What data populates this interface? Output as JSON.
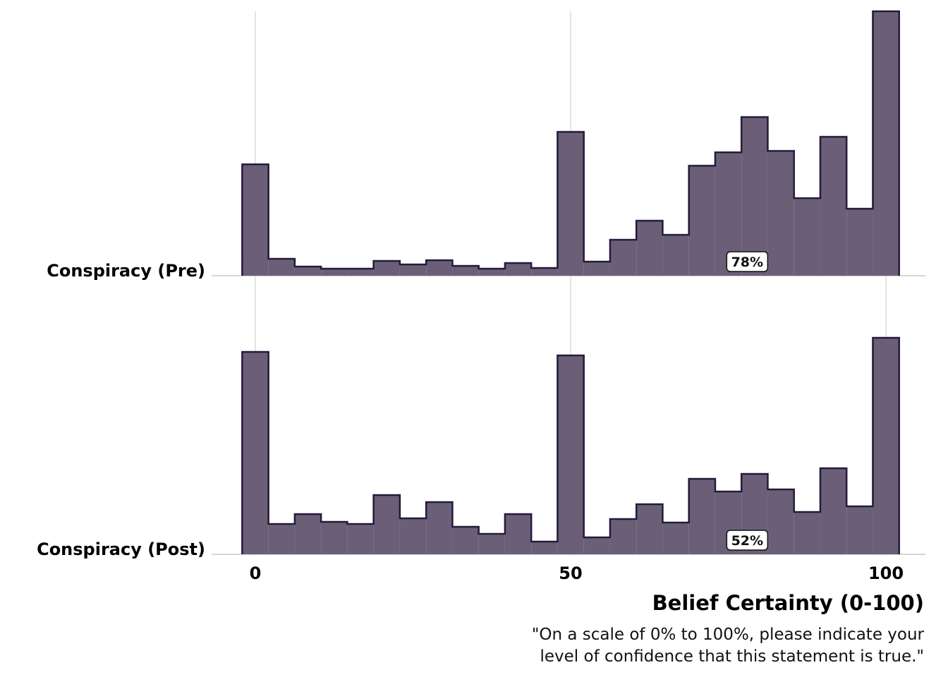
{
  "chart_data": {
    "type": "histogram",
    "xlabel": "Belief Certainty (0-100)",
    "caption": [
      "\"On a scale of 0% to 100%, please indicate your",
      "level of confidence that this statement is true.\""
    ],
    "xlim": [
      -4.17,
      104.17
    ],
    "x_ticks": [
      0,
      50,
      100
    ],
    "x_tick_labels": [
      "0",
      "50",
      "100"
    ],
    "bins": {
      "count": 25,
      "start": -2.083,
      "width": 4.167
    },
    "grid": "vertical",
    "fill_color": "#6b5f78",
    "line_color": "#241a3a",
    "series": [
      {
        "name": "Conspiracy (Pre)",
        "values": [
          158,
          24,
          13,
          10,
          10,
          21,
          16,
          22,
          14,
          10,
          18,
          11,
          204,
          20,
          51,
          78,
          58,
          156,
          175,
          225,
          177,
          110,
          197,
          95,
          375
        ],
        "percent_label": "78%",
        "percent_label_x": 78
      },
      {
        "name": "Conspiracy (Post)",
        "values": [
          287,
          43,
          57,
          46,
          43,
          84,
          51,
          74,
          39,
          29,
          57,
          18,
          282,
          24,
          50,
          71,
          45,
          107,
          89,
          114,
          92,
          60,
          122,
          68,
          307
        ],
        "percent_label": "52%",
        "percent_label_x": 78
      }
    ]
  }
}
